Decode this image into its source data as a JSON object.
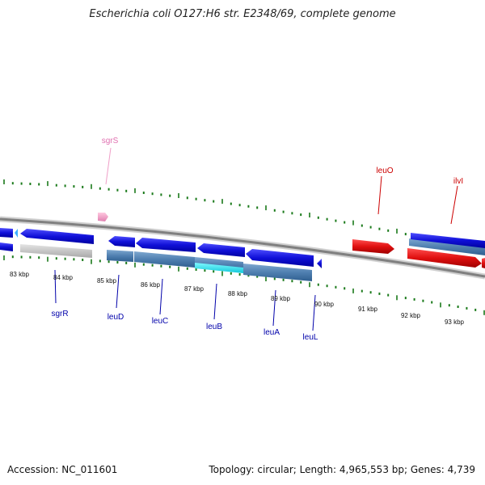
{
  "title": "Escherichia coli O127:H6 str. E2348/69, complete genome",
  "footer": {
    "accession": "Accession: NC_011601",
    "summary": "Topology: circular; Length: 4,965,553 bp; Genes: 4,739"
  },
  "colors": {
    "forward_gene": "#2020e0",
    "cds_steel": "#4f7fb0",
    "reverse_gene": "#e01818",
    "rna_gene": "#f0a0c8",
    "gray_feature": "#c8c8c8",
    "cyan_feature": "#20e0f0",
    "tick": "#1a7a1a",
    "backbone": "#888888"
  },
  "gene_labels": [
    {
      "name": "sgrS",
      "color": "#e070b0"
    },
    {
      "name": "leuO",
      "color": "#cc0000"
    },
    {
      "name": "ilvI",
      "color": "#cc0000"
    },
    {
      "name": "sgrR",
      "color": "#0000aa"
    },
    {
      "name": "leuD",
      "color": "#0000aa"
    },
    {
      "name": "leuC",
      "color": "#0000aa"
    },
    {
      "name": "leuB",
      "color": "#0000aa"
    },
    {
      "name": "leuA",
      "color": "#0000aa"
    },
    {
      "name": "leuL",
      "color": "#0000aa"
    }
  ],
  "scale_labels": [
    "83 kbp",
    "84 kbp",
    "85 kbp",
    "86 kbp",
    "87 kbp",
    "88 kbp",
    "89 kbp",
    "90 kbp",
    "91 kbp",
    "92 kbp",
    "93 kbp"
  ]
}
